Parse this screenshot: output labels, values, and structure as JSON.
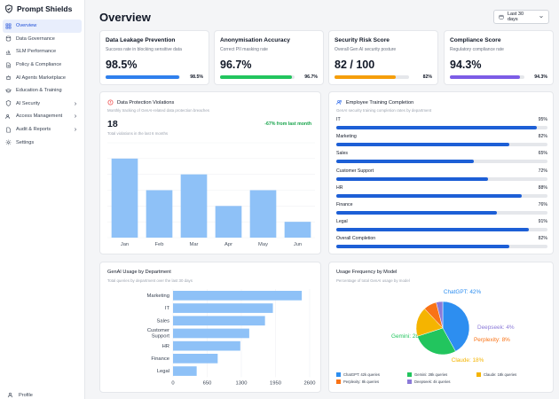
{
  "app": {
    "title": "Prompt Shields"
  },
  "sidebar": {
    "items": [
      {
        "label": "Overview",
        "icon": "grid-icon",
        "active": true,
        "chevron": false
      },
      {
        "label": "Data Governance",
        "icon": "database-icon",
        "active": false,
        "chevron": false
      },
      {
        "label": "SLM Performance",
        "icon": "chart-icon",
        "active": false,
        "chevron": false
      },
      {
        "label": "Policy & Compliance",
        "icon": "document-icon",
        "active": false,
        "chevron": false
      },
      {
        "label": "AI Agents Marketplace",
        "icon": "bot-icon",
        "active": false,
        "chevron": false
      },
      {
        "label": "Education & Training",
        "icon": "graduation-cap-icon",
        "active": false,
        "chevron": false
      },
      {
        "label": "AI Security",
        "icon": "shield-icon",
        "active": false,
        "chevron": true
      },
      {
        "label": "Access Management",
        "icon": "users-icon",
        "active": false,
        "chevron": true
      },
      {
        "label": "Audit & Reports",
        "icon": "file-icon",
        "active": false,
        "chevron": true
      },
      {
        "label": "Settings",
        "icon": "gear-icon",
        "active": false,
        "chevron": false
      }
    ],
    "profile_label": "Profile"
  },
  "header": {
    "title": "Overview",
    "date_range": "Last 30 days"
  },
  "kpis": [
    {
      "title": "Data Leakage Prevention",
      "subtitle": "Success rate in blocking sensitive data",
      "value": "98.5%",
      "pct_label": "98.5%",
      "fraction": 0.985,
      "color": "#2f80ed"
    },
    {
      "title": "Anonymisation Accuracy",
      "subtitle": "Correct PII masking rate",
      "value": "96.7%",
      "pct_label": "96.7%",
      "fraction": 0.967,
      "color": "#22c55e"
    },
    {
      "title": "Security Risk Score",
      "subtitle": "Overall Gen AI security posture",
      "value": "82 / 100",
      "pct_label": "82%",
      "fraction": 0.82,
      "color": "#f59e0b"
    },
    {
      "title": "Compliance Score",
      "subtitle": "Regulatory compliance rate",
      "value": "94.3%",
      "pct_label": "94.3%",
      "fraction": 0.943,
      "color": "#7c5ce6"
    }
  ],
  "violations": {
    "title": "Data Protection Violations",
    "subtitle": "Monthly tracking of GenAI-related data protection breaches",
    "total": "18",
    "total_sub": "Total violations in the last 6 months",
    "trend": "-67% from last month",
    "chart_data": {
      "type": "bar",
      "categories": [
        "Jan",
        "Feb",
        "Mar",
        "Apr",
        "May",
        "Jun"
      ],
      "values": [
        5,
        3,
        4,
        2,
        3,
        1
      ],
      "ylim": [
        0,
        6
      ],
      "color": "#8ec1f7"
    }
  },
  "training": {
    "title": "Employee Training Completion",
    "subtitle": "GenAI security training completion rates by department",
    "rows": [
      {
        "label": "IT",
        "pct_label": "95%",
        "fraction": 0.95
      },
      {
        "label": "Marketing",
        "pct_label": "82%",
        "fraction": 0.82
      },
      {
        "label": "Sales",
        "pct_label": "65%",
        "fraction": 0.65
      },
      {
        "label": "Customer Support",
        "pct_label": "72%",
        "fraction": 0.72
      },
      {
        "label": "HR",
        "pct_label": "88%",
        "fraction": 0.88
      },
      {
        "label": "Finance",
        "pct_label": "76%",
        "fraction": 0.76
      },
      {
        "label": "Legal",
        "pct_label": "91%",
        "fraction": 0.91
      },
      {
        "label": "Overall Completion",
        "pct_label": "82%",
        "fraction": 0.82
      }
    ]
  },
  "genai_usage": {
    "title": "GenAI Usage by Department",
    "subtitle": "Total queries by department over the last 30 days",
    "chart_data": {
      "type": "bar",
      "orientation": "horizontal",
      "categories": [
        "Marketing",
        "IT",
        "Sales",
        "Customer Support",
        "HR",
        "Finance",
        "Legal"
      ],
      "values": [
        2450,
        1900,
        1750,
        1450,
        1280,
        850,
        450
      ],
      "xticks": [
        "0",
        "650",
        "1300",
        "1950",
        "2600"
      ],
      "xlim": [
        0,
        2600
      ],
      "color": "#8ec1f7"
    }
  },
  "model_usage": {
    "title": "Usage Frequency by Model",
    "subtitle": "Percentage of total GenAI usage by model",
    "chart_data": {
      "type": "pie",
      "slices": [
        {
          "name": "ChatGPT",
          "value": 42,
          "label": "ChatGPT: 42%",
          "color": "#2d8ef0"
        },
        {
          "name": "Gemini",
          "value": 28,
          "label": "Gemini: 28%",
          "color": "#22c55e"
        },
        {
          "name": "Claude",
          "value": 18,
          "label": "Claude: 18%",
          "color": "#f5b400"
        },
        {
          "name": "Perplexity",
          "value": 8,
          "label": "Perplexity: 8%",
          "color": "#f97316"
        },
        {
          "name": "Deepseek",
          "value": 4,
          "label": "Deepseek: 4%",
          "color": "#8b7ad8"
        }
      ],
      "legend": [
        {
          "label": "ChatGPT: 42k queries",
          "color": "#2d8ef0"
        },
        {
          "label": "Gemini: 28k queries",
          "color": "#22c55e"
        },
        {
          "label": "Claude: 18k queries",
          "color": "#f5b400"
        },
        {
          "label": "Perplexity: 8k queries",
          "color": "#f97316"
        },
        {
          "label": "Deepseek: 4k queries",
          "color": "#8b7ad8"
        }
      ],
      "legend_placement": "bottom"
    }
  }
}
